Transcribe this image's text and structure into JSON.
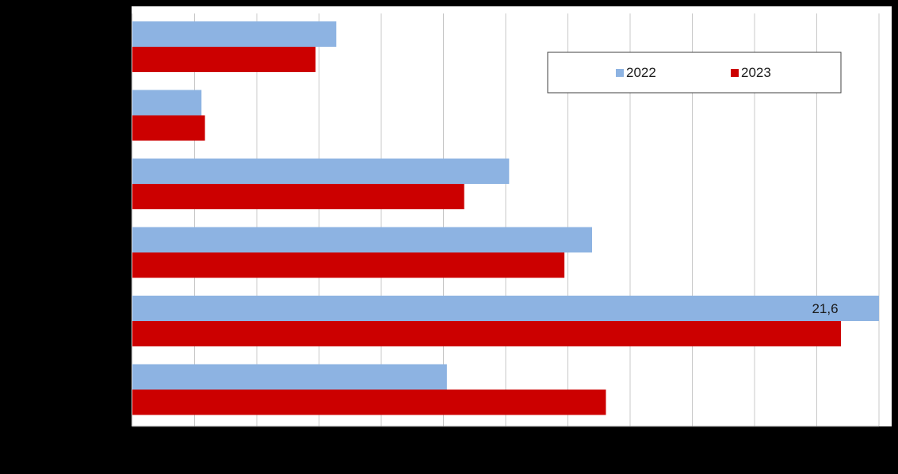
{
  "chart_data": {
    "type": "bar",
    "orientation": "horizontal",
    "categories": [
      "",
      "",
      "",
      "",
      "",
      ""
    ],
    "series": [
      {
        "name": "2022",
        "color": "#8DB3E2",
        "values": [
          5.9,
          2.0,
          10.9,
          13.3,
          21.6,
          9.1
        ]
      },
      {
        "name": "2023",
        "color": "#CC0000",
        "values": [
          5.3,
          2.1,
          9.6,
          12.5,
          20.5,
          13.7
        ]
      }
    ],
    "data_labels": [
      {
        "series": "2022",
        "category_index": 4,
        "text": "21,6"
      }
    ],
    "xlim": [
      0,
      21.6
    ],
    "x_grid_step": 1.8,
    "grid": true,
    "legend": {
      "position": "top-right",
      "entries": [
        "2022",
        "2023"
      ]
    },
    "title": "",
    "xlabel": "",
    "ylabel": ""
  }
}
